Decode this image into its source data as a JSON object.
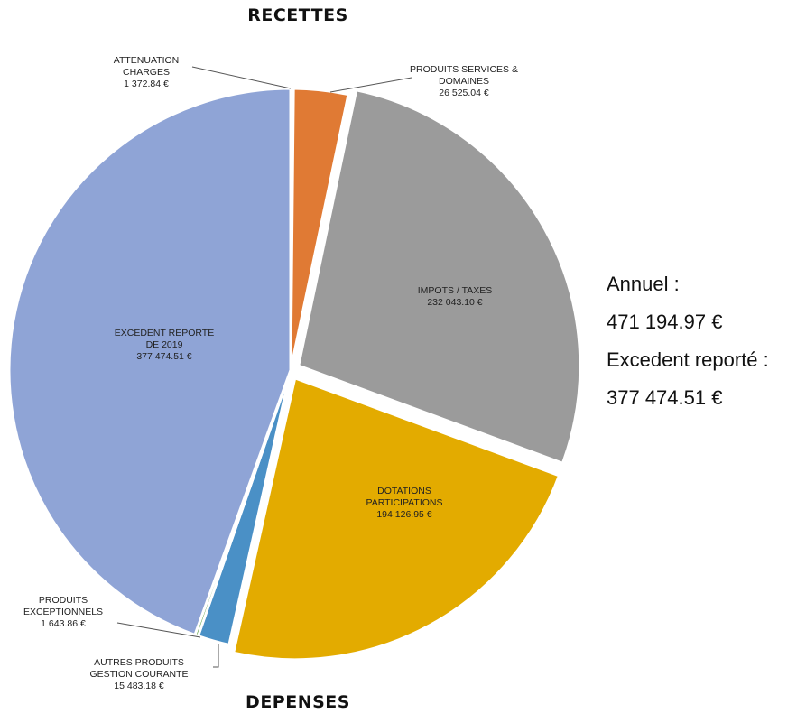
{
  "title_top": "RECETTES",
  "title_bottom": "DEPENSES",
  "side_note": {
    "line1": "Annuel  :",
    "line2": "471 194.97 €",
    "line3": "Excedent reporté :",
    "line4": "377 474.51 €"
  },
  "chart_data": {
    "type": "pie",
    "title": "RECETTES",
    "unit": "€",
    "slices": [
      {
        "key": "attenuation",
        "label_lines": [
          "ATTENUATION",
          "CHARGES"
        ],
        "value": 1372.84,
        "value_text": "1 372.84 €",
        "color": "#4472c4"
      },
      {
        "key": "produits_services",
        "label_lines": [
          "PRODUITS SERVICES &",
          "DOMAINES"
        ],
        "value": 26525.04,
        "value_text": "26 525.04 €",
        "color": "#e07a34"
      },
      {
        "key": "impots",
        "label_lines": [
          "IMPOTS / TAXES"
        ],
        "value": 232043.1,
        "value_text": "232 043.10 €",
        "color": "#9b9b9b"
      },
      {
        "key": "dotations",
        "label_lines": [
          "DOTATIONS",
          "PARTICIPATIONS"
        ],
        "value": 194126.95,
        "value_text": "194 126.95 €",
        "color": "#e3ab00"
      },
      {
        "key": "autres_produits",
        "label_lines": [
          "AUTRES PRODUITS",
          "GESTION COURANTE"
        ],
        "value": 15483.18,
        "value_text": "15 483.18 €",
        "color": "#4a90c6"
      },
      {
        "key": "exceptionnels",
        "label_lines": [
          "PRODUITS",
          "EXCEPTIONNELS"
        ],
        "value": 1643.86,
        "value_text": "1 643.86 €",
        "color": "#6aa84f"
      },
      {
        "key": "excedent",
        "label_lines": [
          "EXCEDENT REPORTE",
          "DE 2019"
        ],
        "value": 377474.51,
        "value_text": "377 474.51 €",
        "color": "#8fa4d6"
      }
    ]
  }
}
